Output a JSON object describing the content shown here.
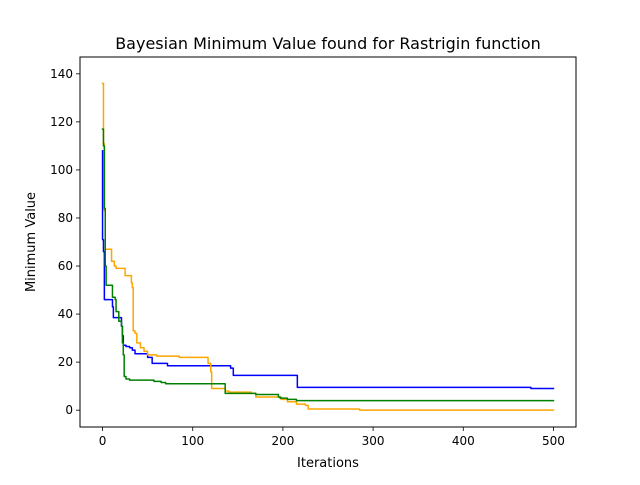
{
  "chart_data": {
    "type": "line",
    "title": "Bayesian Minimum Value found for Rastrigin function",
    "xlabel": "Iterations",
    "ylabel": "Minimum Value",
    "xlim": [
      -25,
      525
    ],
    "ylim": [
      -7,
      147
    ],
    "xticks": [
      0,
      100,
      200,
      300,
      400,
      500
    ],
    "yticks": [
      0,
      20,
      40,
      60,
      80,
      100,
      120,
      140
    ],
    "grid": false,
    "legend": "none",
    "series": [
      {
        "color": "#0000ff",
        "step": true,
        "points": [
          [
            0,
            108
          ],
          [
            0,
            71
          ],
          [
            1,
            66
          ],
          [
            2,
            46
          ],
          [
            10,
            46
          ],
          [
            11,
            43
          ],
          [
            12,
            38.5
          ],
          [
            20,
            38.5
          ],
          [
            21,
            35
          ],
          [
            22,
            31
          ],
          [
            23,
            27
          ],
          [
            26,
            26.5
          ],
          [
            30,
            26
          ],
          [
            33,
            25
          ],
          [
            36,
            23.5
          ],
          [
            46,
            23.5
          ],
          [
            50,
            22
          ],
          [
            55,
            19.5
          ],
          [
            70,
            19.5
          ],
          [
            72,
            18.5
          ],
          [
            140,
            18.5
          ],
          [
            142,
            17.5
          ],
          [
            145,
            14.5
          ],
          [
            215,
            14.5
          ],
          [
            216,
            9.5
          ],
          [
            470,
            9.5
          ],
          [
            475,
            9
          ],
          [
            500,
            9
          ]
        ]
      },
      {
        "color": "#ffa500",
        "step": true,
        "points": [
          [
            0,
            136
          ],
          [
            1,
            111
          ],
          [
            2,
            83
          ],
          [
            3,
            67
          ],
          [
            9,
            67
          ],
          [
            10,
            62
          ],
          [
            13,
            60
          ],
          [
            15,
            59
          ],
          [
            24,
            59
          ],
          [
            25,
            56
          ],
          [
            31,
            56
          ],
          [
            32,
            53
          ],
          [
            33,
            51
          ],
          [
            34,
            33
          ],
          [
            36,
            32
          ],
          [
            38,
            28
          ],
          [
            42,
            26
          ],
          [
            46,
            24.5
          ],
          [
            50,
            23
          ],
          [
            60,
            22.5
          ],
          [
            85,
            22
          ],
          [
            110,
            22
          ],
          [
            117,
            19.5
          ],
          [
            120,
            16
          ],
          [
            121,
            9
          ],
          [
            136,
            8
          ],
          [
            140,
            7.5
          ],
          [
            165,
            7
          ],
          [
            170,
            5.5
          ],
          [
            195,
            5.5
          ],
          [
            198,
            4.5
          ],
          [
            205,
            3.5
          ],
          [
            215,
            2.5
          ],
          [
            225,
            2
          ],
          [
            228,
            0.5
          ],
          [
            280,
            0.5
          ],
          [
            285,
            0
          ],
          [
            500,
            0
          ]
        ]
      },
      {
        "color": "#008000",
        "step": true,
        "points": [
          [
            0,
            117
          ],
          [
            1,
            110
          ],
          [
            2,
            84
          ],
          [
            3,
            60
          ],
          [
            4,
            52
          ],
          [
            10,
            52
          ],
          [
            11,
            47
          ],
          [
            14,
            46
          ],
          [
            15,
            41
          ],
          [
            18,
            37
          ],
          [
            21,
            35
          ],
          [
            22,
            28
          ],
          [
            23,
            23
          ],
          [
            24,
            14
          ],
          [
            26,
            13
          ],
          [
            30,
            12.5
          ],
          [
            55,
            12.5
          ],
          [
            57,
            12
          ],
          [
            65,
            11.5
          ],
          [
            70,
            11
          ],
          [
            135,
            11
          ],
          [
            136,
            7
          ],
          [
            170,
            6.5
          ],
          [
            195,
            5.5
          ],
          [
            197,
            5
          ],
          [
            205,
            4.5
          ],
          [
            215,
            4
          ],
          [
            500,
            4
          ]
        ]
      }
    ]
  }
}
